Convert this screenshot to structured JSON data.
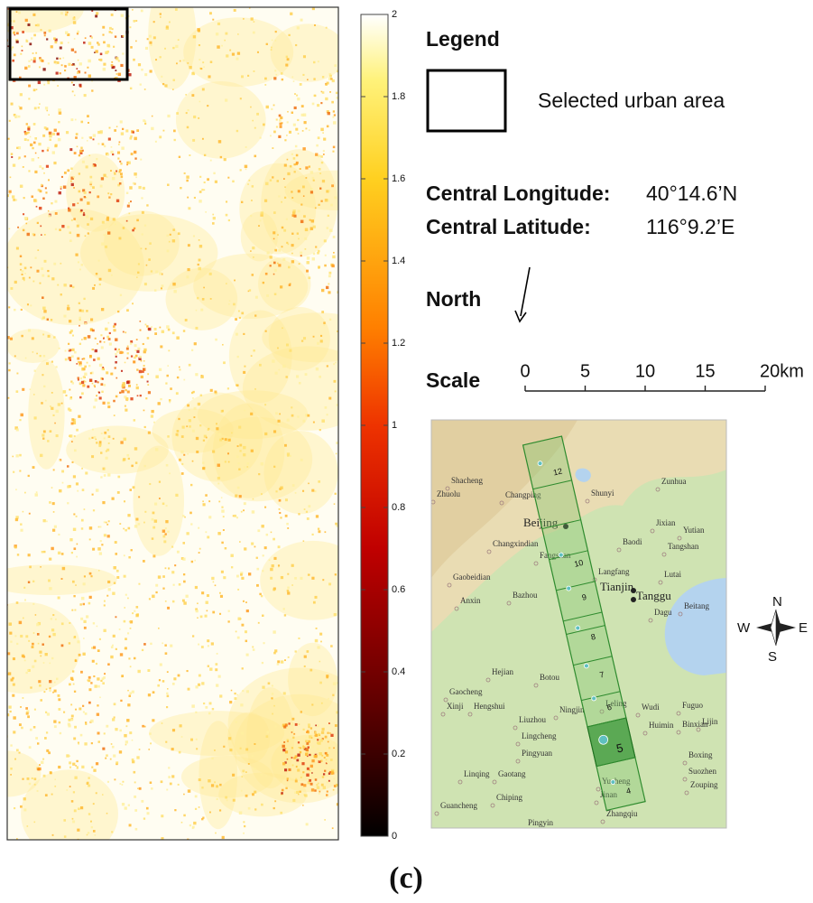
{
  "figure_label": "(c)",
  "colorbar": {
    "lim": [
      0,
      2
    ],
    "ticks": [
      0,
      0.2,
      0.4,
      0.6,
      0.8,
      1,
      1.2,
      1.4,
      1.6,
      1.8,
      2
    ]
  },
  "legend": {
    "title": "Legend",
    "item": "Selected urban area"
  },
  "coordinates": {
    "longitude_label": "Central Longitude:",
    "longitude_value": "40°14.6’N",
    "latitude_label": "Central Latitude:",
    "latitude_value": "116°9.2’E"
  },
  "north_label": "North",
  "scale": {
    "label": "Scale",
    "lim": [
      0,
      20
    ],
    "ticks": [
      0,
      5,
      10,
      15,
      {
        "value": 20,
        "label": "20km"
      }
    ]
  },
  "inset_map": {
    "cities": [
      "Beijing",
      "Tianjin",
      "Tanggu"
    ],
    "places": [
      "Shacheng",
      "Zhuolu",
      "Changping",
      "Shunyi",
      "Zunhua",
      "Jixian",
      "Yutian",
      "Tangshan",
      "Changxindian",
      "Fangshan",
      "Baodi",
      "Gaobeidian",
      "Langfang",
      "Lutai",
      "Anxin",
      "Bazhou",
      "Dagu",
      "Beitang",
      "Hejian",
      "Gaocheng",
      "Xinji",
      "Hengshui",
      "Botou",
      "Ningjin",
      "Leling",
      "Wudi",
      "Fuguo",
      "Liuzhou",
      "Huimin",
      "Binxian",
      "Lijin",
      "Lingcheng",
      "Pingyuan",
      "Boxing",
      "Linqing",
      "Gaotang",
      "Yucheng",
      "Suozhen",
      "Zouping",
      "Jinan",
      "Chiping",
      "Zhangqiu",
      "Guancheng",
      "Pingyin"
    ],
    "strip_labels": [
      "12",
      "10",
      "9",
      "8",
      "7",
      "6",
      "5",
      "4"
    ]
  },
  "compass": {
    "n": "N",
    "s": "S",
    "e": "E",
    "w": "W"
  }
}
